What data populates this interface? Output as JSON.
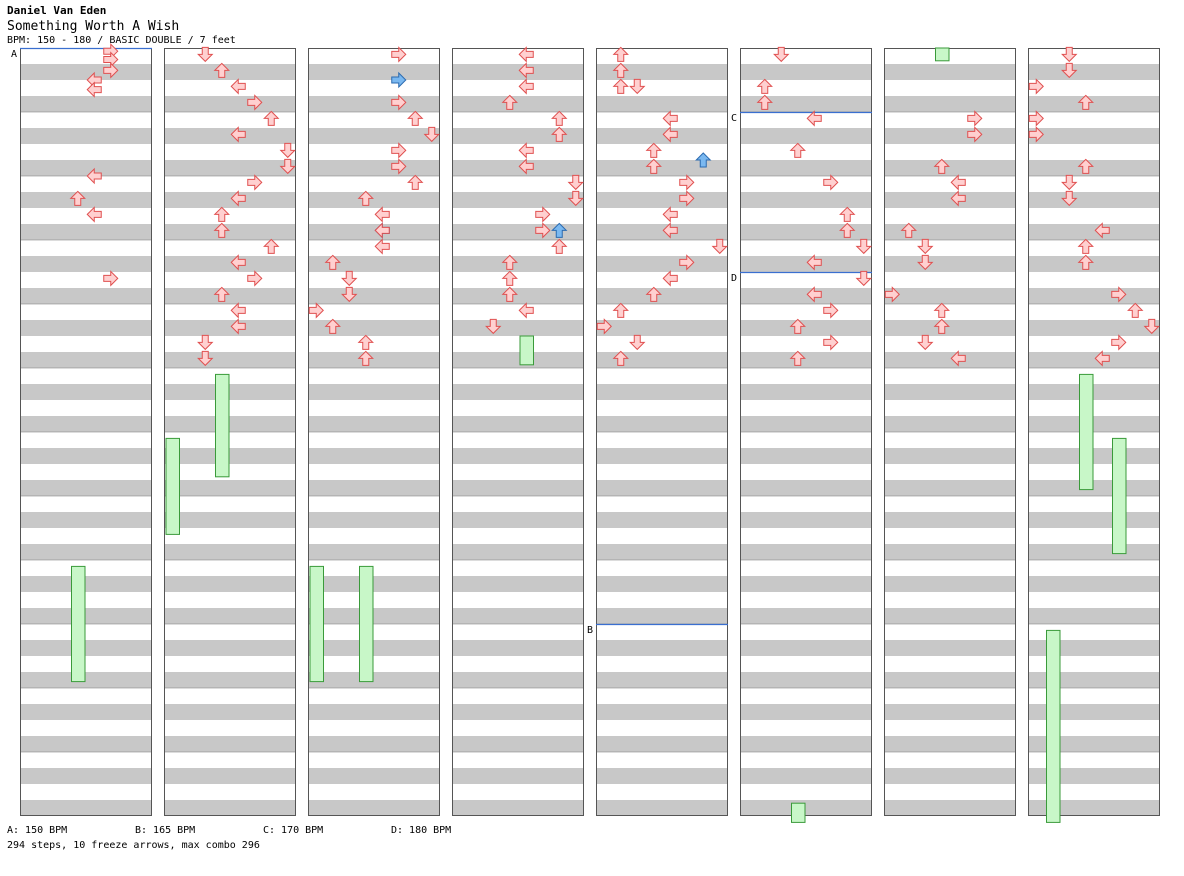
{
  "header": {
    "artist": "Daniel Van Eden",
    "title": "Something Worth A Wish",
    "meta": "BPM: 150 - 180 / BASIC DOUBLE / 7 feet"
  },
  "section_markers": [
    {
      "label": "A",
      "column": 0,
      "measure": 0
    },
    {
      "label": "B",
      "column": 4,
      "measure": 9
    },
    {
      "label": "C",
      "column": 5,
      "measure": 1
    },
    {
      "label": "D",
      "column": 5,
      "measure": 3.5
    }
  ],
  "bpm_legend": [
    {
      "label": "A: 150 BPM"
    },
    {
      "label": "B: 165 BPM"
    },
    {
      "label": "C: 170 BPM"
    },
    {
      "label": "D: 180 BPM"
    }
  ],
  "footer": {
    "stats": "294 steps, 10 freeze arrows, max combo 296"
  },
  "colors": {
    "stripe": "#c8c8c8",
    "column_border": "#555555",
    "marker_line": "#3a6fd0",
    "arrow_red_fill": "#ffd0d0",
    "arrow_red_stroke": "#e05050",
    "arrow_blue_fill": "#7ab8f0",
    "arrow_blue_stroke": "#2a6ab0",
    "freeze_fill": "#c8f7c8",
    "freeze_stroke": "#3a9a3a"
  },
  "arrows": [
    [
      0,
      0.05,
      5,
      "r"
    ],
    [
      0,
      0.18,
      5,
      "r"
    ],
    [
      0,
      0.35,
      5,
      "r"
    ],
    [
      0,
      0.5,
      4,
      "r"
    ],
    [
      0,
      0.65,
      4,
      "r"
    ],
    [
      0,
      2.0,
      4,
      "r"
    ],
    [
      0,
      2.35,
      3,
      "r"
    ],
    [
      0,
      2.6,
      4,
      "r"
    ],
    [
      0,
      3.6,
      5,
      "r"
    ],
    [
      1,
      0.1,
      2,
      "r"
    ],
    [
      1,
      0.35,
      3,
      "r"
    ],
    [
      1,
      0.6,
      4,
      "r"
    ],
    [
      1,
      0.85,
      5,
      "r"
    ],
    [
      1,
      1.1,
      6,
      "r"
    ],
    [
      1,
      1.35,
      4,
      "r"
    ],
    [
      1,
      1.6,
      7,
      "r"
    ],
    [
      1,
      1.85,
      7,
      "r"
    ],
    [
      1,
      2.1,
      5,
      "r"
    ],
    [
      1,
      2.35,
      4,
      "r"
    ],
    [
      1,
      2.6,
      3,
      "r"
    ],
    [
      1,
      2.85,
      3,
      "r"
    ],
    [
      1,
      3.1,
      6,
      "r"
    ],
    [
      1,
      3.35,
      4,
      "r"
    ],
    [
      1,
      3.6,
      5,
      "r"
    ],
    [
      1,
      3.85,
      3,
      "r"
    ],
    [
      1,
      4.1,
      4,
      "r"
    ],
    [
      1,
      4.35,
      4,
      "r"
    ],
    [
      1,
      4.6,
      2,
      "r"
    ],
    [
      1,
      4.85,
      2,
      "r"
    ],
    [
      2,
      0.1,
      5,
      "r"
    ],
    [
      2,
      0.5,
      5,
      "b"
    ],
    [
      2,
      0.85,
      5,
      "r"
    ],
    [
      2,
      1.1,
      6,
      "r"
    ],
    [
      2,
      1.35,
      7,
      "r"
    ],
    [
      2,
      1.6,
      5,
      "r"
    ],
    [
      2,
      1.85,
      5,
      "r"
    ],
    [
      2,
      2.1,
      6,
      "r"
    ],
    [
      2,
      2.35,
      3,
      "r"
    ],
    [
      2,
      2.6,
      4,
      "r"
    ],
    [
      2,
      2.85,
      4,
      "b"
    ],
    [
      2,
      2.85,
      4,
      "r"
    ],
    [
      2,
      3.1,
      4,
      "r"
    ],
    [
      2,
      3.35,
      1,
      "r"
    ],
    [
      2,
      3.6,
      2,
      "r"
    ],
    [
      2,
      3.85,
      2,
      "r"
    ],
    [
      2,
      4.1,
      0,
      "r"
    ],
    [
      2,
      4.35,
      1,
      "r"
    ],
    [
      2,
      4.6,
      3,
      "r"
    ],
    [
      2,
      4.85,
      3,
      "r"
    ],
    [
      3,
      0.1,
      4,
      "r"
    ],
    [
      3,
      0.35,
      4,
      "r"
    ],
    [
      3,
      0.6,
      4,
      "r"
    ],
    [
      3,
      0.85,
      3,
      "r"
    ],
    [
      3,
      1.1,
      6,
      "r"
    ],
    [
      3,
      1.35,
      6,
      "r"
    ],
    [
      3,
      1.6,
      4,
      "r"
    ],
    [
      3,
      1.85,
      4,
      "r"
    ],
    [
      3,
      2.1,
      7,
      "r"
    ],
    [
      3,
      2.35,
      7,
      "r"
    ],
    [
      3,
      2.6,
      5,
      "r"
    ],
    [
      3,
      2.85,
      6,
      "b"
    ],
    [
      3,
      2.85,
      5,
      "r"
    ],
    [
      3,
      3.1,
      6,
      "r"
    ],
    [
      3,
      3.35,
      3,
      "r"
    ],
    [
      3,
      3.6,
      3,
      "r"
    ],
    [
      3,
      3.85,
      3,
      "r"
    ],
    [
      3,
      4.1,
      4,
      "r"
    ],
    [
      3,
      4.35,
      2,
      "r"
    ],
    [
      4,
      0.1,
      1,
      "r"
    ],
    [
      4,
      0.35,
      1,
      "r"
    ],
    [
      4,
      0.6,
      1,
      "r"
    ],
    [
      4,
      0.6,
      2,
      "r"
    ],
    [
      4,
      1.1,
      4,
      "r"
    ],
    [
      4,
      1.35,
      4,
      "r"
    ],
    [
      4,
      1.6,
      3,
      "r"
    ],
    [
      4,
      1.75,
      6,
      "b"
    ],
    [
      4,
      1.85,
      3,
      "r"
    ],
    [
      4,
      2.1,
      5,
      "r"
    ],
    [
      4,
      2.35,
      5,
      "r"
    ],
    [
      4,
      2.6,
      4,
      "r"
    ],
    [
      4,
      2.85,
      4,
      "r"
    ],
    [
      4,
      3.1,
      7,
      "r"
    ],
    [
      4,
      3.35,
      5,
      "r"
    ],
    [
      4,
      3.6,
      4,
      "r"
    ],
    [
      4,
      3.85,
      3,
      "r"
    ],
    [
      4,
      4.1,
      1,
      "r"
    ],
    [
      4,
      4.35,
      0,
      "r"
    ],
    [
      4,
      4.6,
      2,
      "r"
    ],
    [
      4,
      4.85,
      1,
      "r"
    ],
    [
      5,
      0.1,
      2,
      "r"
    ],
    [
      5,
      0.6,
      1,
      "r"
    ],
    [
      5,
      0.85,
      1,
      "r"
    ],
    [
      5,
      1.1,
      4,
      "r"
    ],
    [
      5,
      1.6,
      3,
      "r"
    ],
    [
      5,
      2.1,
      5,
      "r"
    ],
    [
      5,
      2.6,
      6,
      "r"
    ],
    [
      5,
      2.85,
      6,
      "r"
    ],
    [
      5,
      3.1,
      7,
      "r"
    ],
    [
      5,
      3.35,
      4,
      "r"
    ],
    [
      5,
      3.6,
      7,
      "r"
    ],
    [
      5,
      3.85,
      4,
      "r"
    ],
    [
      5,
      4.1,
      5,
      "r"
    ],
    [
      5,
      4.35,
      3,
      "r"
    ],
    [
      5,
      4.6,
      5,
      "r"
    ],
    [
      5,
      4.85,
      3,
      "r"
    ],
    [
      6,
      1.1,
      5,
      "r"
    ],
    [
      6,
      1.35,
      5,
      "r"
    ],
    [
      6,
      1.85,
      3,
      "r"
    ],
    [
      6,
      2.1,
      4,
      "r"
    ],
    [
      6,
      2.35,
      4,
      "r"
    ],
    [
      6,
      2.85,
      1,
      "r"
    ],
    [
      6,
      3.1,
      2,
      "r"
    ],
    [
      6,
      3.35,
      2,
      "r"
    ],
    [
      6,
      3.85,
      0,
      "r"
    ],
    [
      6,
      4.1,
      3,
      "r"
    ],
    [
      6,
      4.35,
      3,
      "r"
    ],
    [
      6,
      4.6,
      2,
      "r"
    ],
    [
      6,
      4.85,
      4,
      "r"
    ],
    [
      7,
      0.1,
      2,
      "r"
    ],
    [
      7,
      0.35,
      2,
      "r"
    ],
    [
      7,
      0.6,
      0,
      "r"
    ],
    [
      7,
      0.85,
      3,
      "r"
    ],
    [
      7,
      1.1,
      0,
      "r"
    ],
    [
      7,
      1.35,
      0,
      "r"
    ],
    [
      7,
      1.85,
      3,
      "r"
    ],
    [
      7,
      2.1,
      2,
      "r"
    ],
    [
      7,
      2.35,
      2,
      "r"
    ],
    [
      7,
      2.85,
      4,
      "r"
    ],
    [
      7,
      3.1,
      3,
      "r"
    ],
    [
      7,
      3.35,
      3,
      "r"
    ],
    [
      7,
      3.85,
      5,
      "r"
    ],
    [
      7,
      4.1,
      6,
      "r"
    ],
    [
      7,
      4.35,
      7,
      "r"
    ],
    [
      7,
      4.6,
      5,
      "r"
    ],
    [
      7,
      4.85,
      4,
      "r"
    ]
  ]
}
